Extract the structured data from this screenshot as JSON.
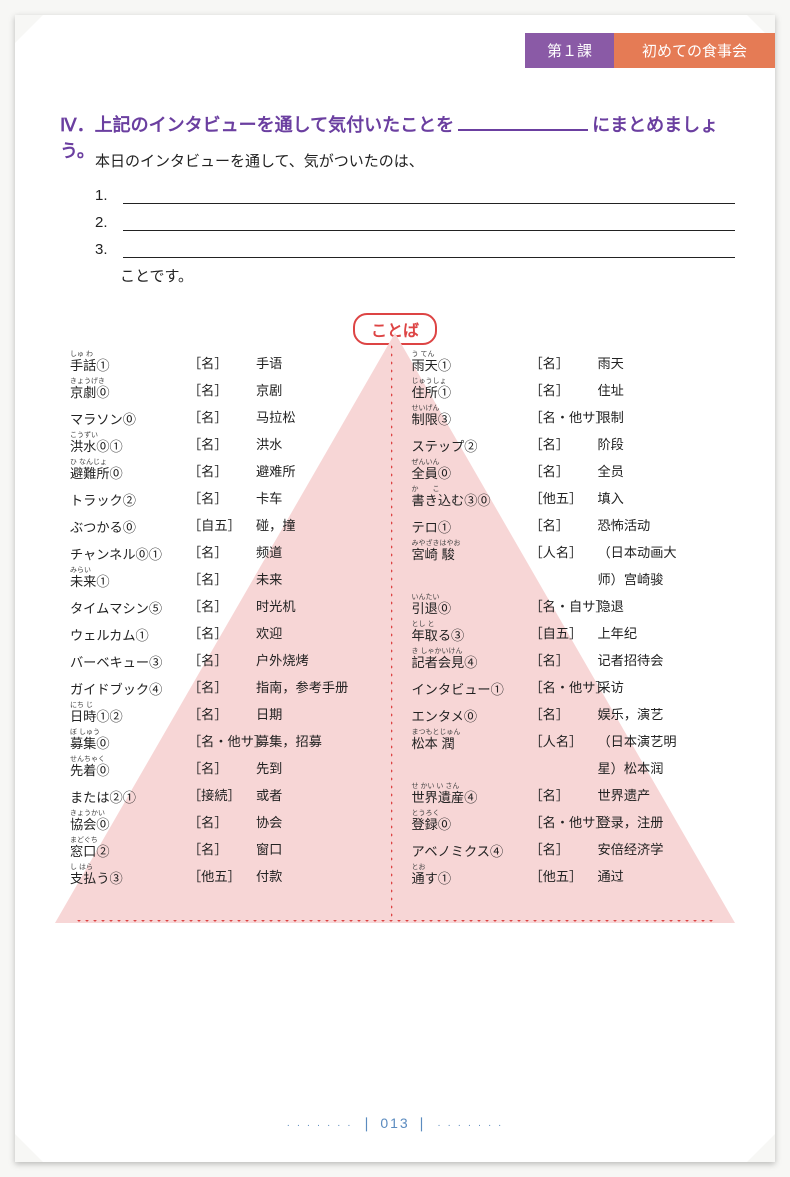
{
  "header": {
    "lesson": "第１課",
    "title": "初めての食事会"
  },
  "section4": {
    "heading_prefix": "Ⅳ．上記のインタビューを通して気付いたことを",
    "heading_suffix": "にまとめましょう。",
    "intro": "本日のインタビューを通して、気がついたのは、",
    "nums": [
      "1.",
      "2.",
      "3."
    ],
    "koto": "ことです。"
  },
  "kotoba_label": "ことば",
  "colors": {
    "purple": "#6b3fa0",
    "tab_purple": "#8a5aa6",
    "tab_orange": "#e57b55",
    "accent_red": "#d44",
    "triangle": "#f7d6d6",
    "pageno": "#5b8bbf"
  },
  "vocab_left": [
    {
      "rb": "しゅ わ",
      "w": "手話①",
      "p": "［名］",
      "d": "手语"
    },
    {
      "rb": "きょうげき",
      "w": "京劇⓪",
      "p": "［名］",
      "d": "京剧"
    },
    {
      "rb": "",
      "w": "マラソン⓪",
      "p": "［名］",
      "d": "马拉松"
    },
    {
      "rb": "こうずい",
      "w": "洪水⓪①",
      "p": "［名］",
      "d": "洪水"
    },
    {
      "rb": "ひ なんじょ",
      "w": "避難所⓪",
      "p": "［名］",
      "d": "避难所"
    },
    {
      "rb": "",
      "w": "トラック②",
      "p": "［名］",
      "d": "卡车"
    },
    {
      "rb": "",
      "w": "ぶつかる⓪",
      "p": "［自五］",
      "d": "碰，撞"
    },
    {
      "rb": "",
      "w": "チャンネル⓪①",
      "p": "［名］",
      "d": "频道"
    },
    {
      "rb": "みらい",
      "w": "未来①",
      "p": "［名］",
      "d": "未来"
    },
    {
      "rb": "",
      "w": "タイムマシン⑤",
      "p": "［名］",
      "d": "时光机"
    },
    {
      "rb": "",
      "w": "ウェルカム①",
      "p": "［名］",
      "d": "欢迎"
    },
    {
      "rb": "",
      "w": "バーベキュー③",
      "p": "［名］",
      "d": "户外烧烤"
    },
    {
      "rb": "",
      "w": "ガイドブック④",
      "p": "［名］",
      "d": "指南，参考手册"
    },
    {
      "rb": "にち じ",
      "w": "日時①②",
      "p": "［名］",
      "d": "日期"
    },
    {
      "rb": "ぼ しゅう",
      "w": "募集⓪",
      "p": "［名・他サ］",
      "d": "募集，招募"
    },
    {
      "rb": "せんちゃく",
      "w": "先着⓪",
      "p": "［名］",
      "d": "先到"
    },
    {
      "rb": "",
      "w": "または②①",
      "p": "［接続］",
      "d": "或者"
    },
    {
      "rb": "きょうかい",
      "w": "協会⓪",
      "p": "［名］",
      "d": "协会"
    },
    {
      "rb": "まどぐち",
      "w": "窓口②",
      "p": "［名］",
      "d": "窗口"
    },
    {
      "rb": "し はら",
      "w": "支払う③",
      "p": "［他五］",
      "d": "付款"
    }
  ],
  "vocab_right": [
    {
      "rb": "う  てん",
      "w": "雨天①",
      "p": "［名］",
      "d": "雨天"
    },
    {
      "rb": "じゅうしょ",
      "w": "住所①",
      "p": "［名］",
      "d": "住址"
    },
    {
      "rb": "せいげん",
      "w": "制限③",
      "p": "［名・他サ］",
      "d": "限制"
    },
    {
      "rb": "",
      "w": "ステップ②",
      "p": "［名］",
      "d": "阶段"
    },
    {
      "rb": "ぜんいん",
      "w": "全員⓪",
      "p": "［名］",
      "d": "全员"
    },
    {
      "rb": "か　　こ",
      "w": "書き込む③⓪",
      "p": "［他五］",
      "d": "填入"
    },
    {
      "rb": "",
      "w": "テロ①",
      "p": "［名］",
      "d": "恐怖活动"
    },
    {
      "rb": "みやざきはやお",
      "w": "宮崎 駿",
      "p": "［人名］",
      "d": "（日本动画大"
    },
    {
      "rb": "",
      "w": "",
      "p": "",
      "d": "师）宫崎骏"
    },
    {
      "rb": "いんたい",
      "w": "引退⓪",
      "p": "［名・自サ］",
      "d": "隐退"
    },
    {
      "rb": "とし と",
      "w": "年取る③",
      "p": "［自五］",
      "d": "上年纪"
    },
    {
      "rb": "き しゃかいけん",
      "w": "記者会見④",
      "p": "［名］",
      "d": "记者招待会"
    },
    {
      "rb": "",
      "w": "インタビュー①",
      "p": "［名・他サ］",
      "d": "采访"
    },
    {
      "rb": "",
      "w": "エンタメ⓪",
      "p": "［名］",
      "d": "娱乐，演艺"
    },
    {
      "rb": "まつもとじゅん",
      "w": "松本 潤",
      "p": "［人名］",
      "d": "（日本演艺明"
    },
    {
      "rb": "",
      "w": "",
      "p": "",
      "d": "星）松本润"
    },
    {
      "rb": "せ かい い さん",
      "w": "世界遺産④",
      "p": "［名］",
      "d": "世界遗产"
    },
    {
      "rb": "とうろく",
      "w": "登録⓪",
      "p": "［名・他サ］",
      "d": "登录，注册"
    },
    {
      "rb": "",
      "w": "アベノミクス④",
      "p": "［名］",
      "d": "安倍经济学"
    },
    {
      "rb": "とお",
      "w": "通す①",
      "p": "［他五］",
      "d": "通过"
    }
  ],
  "page_number": "013"
}
